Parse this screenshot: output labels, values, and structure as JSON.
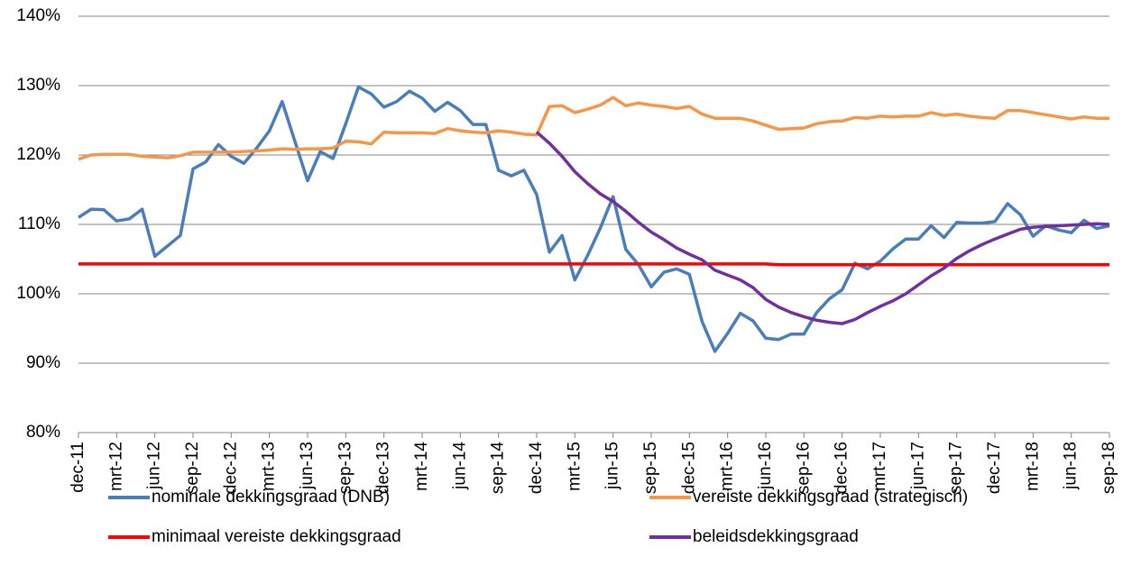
{
  "chart_data": {
    "type": "line",
    "categories": [
      "dec-11",
      null,
      null,
      "mrt-12",
      null,
      null,
      "jun-12",
      null,
      null,
      "sep-12",
      null,
      null,
      "dec-12",
      null,
      null,
      "mrt-13",
      null,
      null,
      "jun-13",
      null,
      null,
      "sep-13",
      null,
      null,
      "dec-13",
      null,
      null,
      "mrt-14",
      null,
      null,
      "jun-14",
      null,
      null,
      "sep-14",
      null,
      null,
      "dec-14",
      null,
      null,
      "mrt-15",
      null,
      null,
      "jun-15",
      null,
      null,
      "sep-15",
      null,
      null,
      "dec-15",
      null,
      null,
      "mrt-16",
      null,
      null,
      "jun-16",
      null,
      null,
      "sep-16",
      null,
      null,
      "dec-16",
      null,
      null,
      "mrt-17",
      null,
      null,
      "jun-17",
      null,
      null,
      "sep-17",
      null,
      null,
      "dec-17",
      null,
      null,
      "mrt-18",
      null,
      null,
      "jun-18",
      null,
      null,
      "sep-18"
    ],
    "series": [
      {
        "name": "nominale dekkingsgraad (DNB)",
        "color": "#4a7ebb",
        "values": [
          111.0,
          112.2,
          112.1,
          110.5,
          110.8,
          112.2,
          105.4,
          106.9,
          108.4,
          118.0,
          119.0,
          121.5,
          119.8,
          118.8,
          121.0,
          123.5,
          127.7,
          122.0,
          116.3,
          120.5,
          119.5,
          124.5,
          129.8,
          128.8,
          126.9,
          127.7,
          129.2,
          128.2,
          126.3,
          127.6,
          126.4,
          124.4,
          124.4,
          117.8,
          117.0,
          117.8,
          114.3,
          106.0,
          108.4,
          102.0,
          105.5,
          109.5,
          114.0,
          106.4,
          104.2,
          101.0,
          103.1,
          103.6,
          102.8,
          96.0,
          91.7,
          94.3,
          97.2,
          96.1,
          93.6,
          93.4,
          94.2,
          94.2,
          97.3,
          99.3,
          100.6,
          104.4,
          103.6,
          104.7,
          106.5,
          107.9,
          107.9,
          109.8,
          108.1,
          110.3,
          110.2,
          110.2,
          110.4,
          113.0,
          111.4,
          108.3,
          109.8,
          109.2,
          108.8,
          110.6,
          109.4,
          109.8
        ]
      },
      {
        "name": "vereiste dekkingsgraad (strategisch)",
        "color": "#f79646",
        "values": [
          119.4,
          120.0,
          120.1,
          120.1,
          120.1,
          119.8,
          119.7,
          119.6,
          119.9,
          120.4,
          120.4,
          120.4,
          120.4,
          120.5,
          120.6,
          120.7,
          120.9,
          120.8,
          120.9,
          120.9,
          121.0,
          122.0,
          121.9,
          121.6,
          123.3,
          123.2,
          123.2,
          123.2,
          123.1,
          123.8,
          123.5,
          123.3,
          123.2,
          123.5,
          123.3,
          123.0,
          122.9,
          127.0,
          127.1,
          126.1,
          126.6,
          127.2,
          128.3,
          127.1,
          127.5,
          127.2,
          127.0,
          126.7,
          127.0,
          125.9,
          125.3,
          125.3,
          125.3,
          124.9,
          124.3,
          123.7,
          123.8,
          123.9,
          124.5,
          124.8,
          124.9,
          125.4,
          125.3,
          125.6,
          125.5,
          125.6,
          125.6,
          126.1,
          125.7,
          125.9,
          125.6,
          125.4,
          125.3,
          126.4,
          126.4,
          126.1,
          125.8,
          125.5,
          125.2,
          125.5,
          125.3,
          125.3
        ]
      },
      {
        "name": "minimaal vereiste dekkingsgraad",
        "color": "#ff0000",
        "values": [
          104.3,
          104.3,
          104.3,
          104.3,
          104.3,
          104.3,
          104.3,
          104.3,
          104.3,
          104.3,
          104.3,
          104.3,
          104.3,
          104.3,
          104.3,
          104.3,
          104.3,
          104.3,
          104.3,
          104.3,
          104.3,
          104.3,
          104.3,
          104.3,
          104.3,
          104.3,
          104.3,
          104.3,
          104.3,
          104.3,
          104.3,
          104.3,
          104.3,
          104.3,
          104.3,
          104.3,
          104.3,
          104.3,
          104.3,
          104.3,
          104.3,
          104.3,
          104.3,
          104.3,
          104.3,
          104.3,
          104.3,
          104.3,
          104.3,
          104.3,
          104.3,
          104.3,
          104.3,
          104.3,
          104.3,
          104.2,
          104.2,
          104.2,
          104.2,
          104.2,
          104.2,
          104.2,
          104.2,
          104.2,
          104.2,
          104.2,
          104.2,
          104.2,
          104.2,
          104.2,
          104.2,
          104.2,
          104.2,
          104.2,
          104.2,
          104.2,
          104.2,
          104.2,
          104.2,
          104.2,
          104.2,
          104.2
        ]
      },
      {
        "name": "beleidsdekkingsgraad",
        "color": "#7030a0",
        "values": [
          null,
          null,
          null,
          null,
          null,
          null,
          null,
          null,
          null,
          null,
          null,
          null,
          null,
          null,
          null,
          null,
          null,
          null,
          null,
          null,
          null,
          null,
          null,
          null,
          null,
          null,
          null,
          null,
          null,
          null,
          null,
          null,
          null,
          null,
          null,
          null,
          123.3,
          121.7,
          119.8,
          117.6,
          115.9,
          114.4,
          113.3,
          111.9,
          110.3,
          108.9,
          107.8,
          106.6,
          105.7,
          104.9,
          103.4,
          102.7,
          102.0,
          100.9,
          99.2,
          98.1,
          97.3,
          96.7,
          96.2,
          95.9,
          95.7,
          96.3,
          97.3,
          98.2,
          99.0,
          100.0,
          101.3,
          102.6,
          103.7,
          105.1,
          106.2,
          107.1,
          107.9,
          108.6,
          109.3,
          109.6,
          109.7,
          109.8,
          109.9,
          110.0,
          110.1,
          110.0
        ]
      }
    ],
    "ylim": [
      80,
      140
    ],
    "yticks": [
      {
        "value": 80,
        "label": "80%"
      },
      {
        "value": 90,
        "label": "90%"
      },
      {
        "value": 100,
        "label": "100%"
      },
      {
        "value": 110,
        "label": "110%"
      },
      {
        "value": 120,
        "label": "120%"
      },
      {
        "value": 130,
        "label": "130%"
      },
      {
        "value": 140,
        "label": "140%"
      }
    ],
    "grid": true,
    "legend": "bottom"
  }
}
